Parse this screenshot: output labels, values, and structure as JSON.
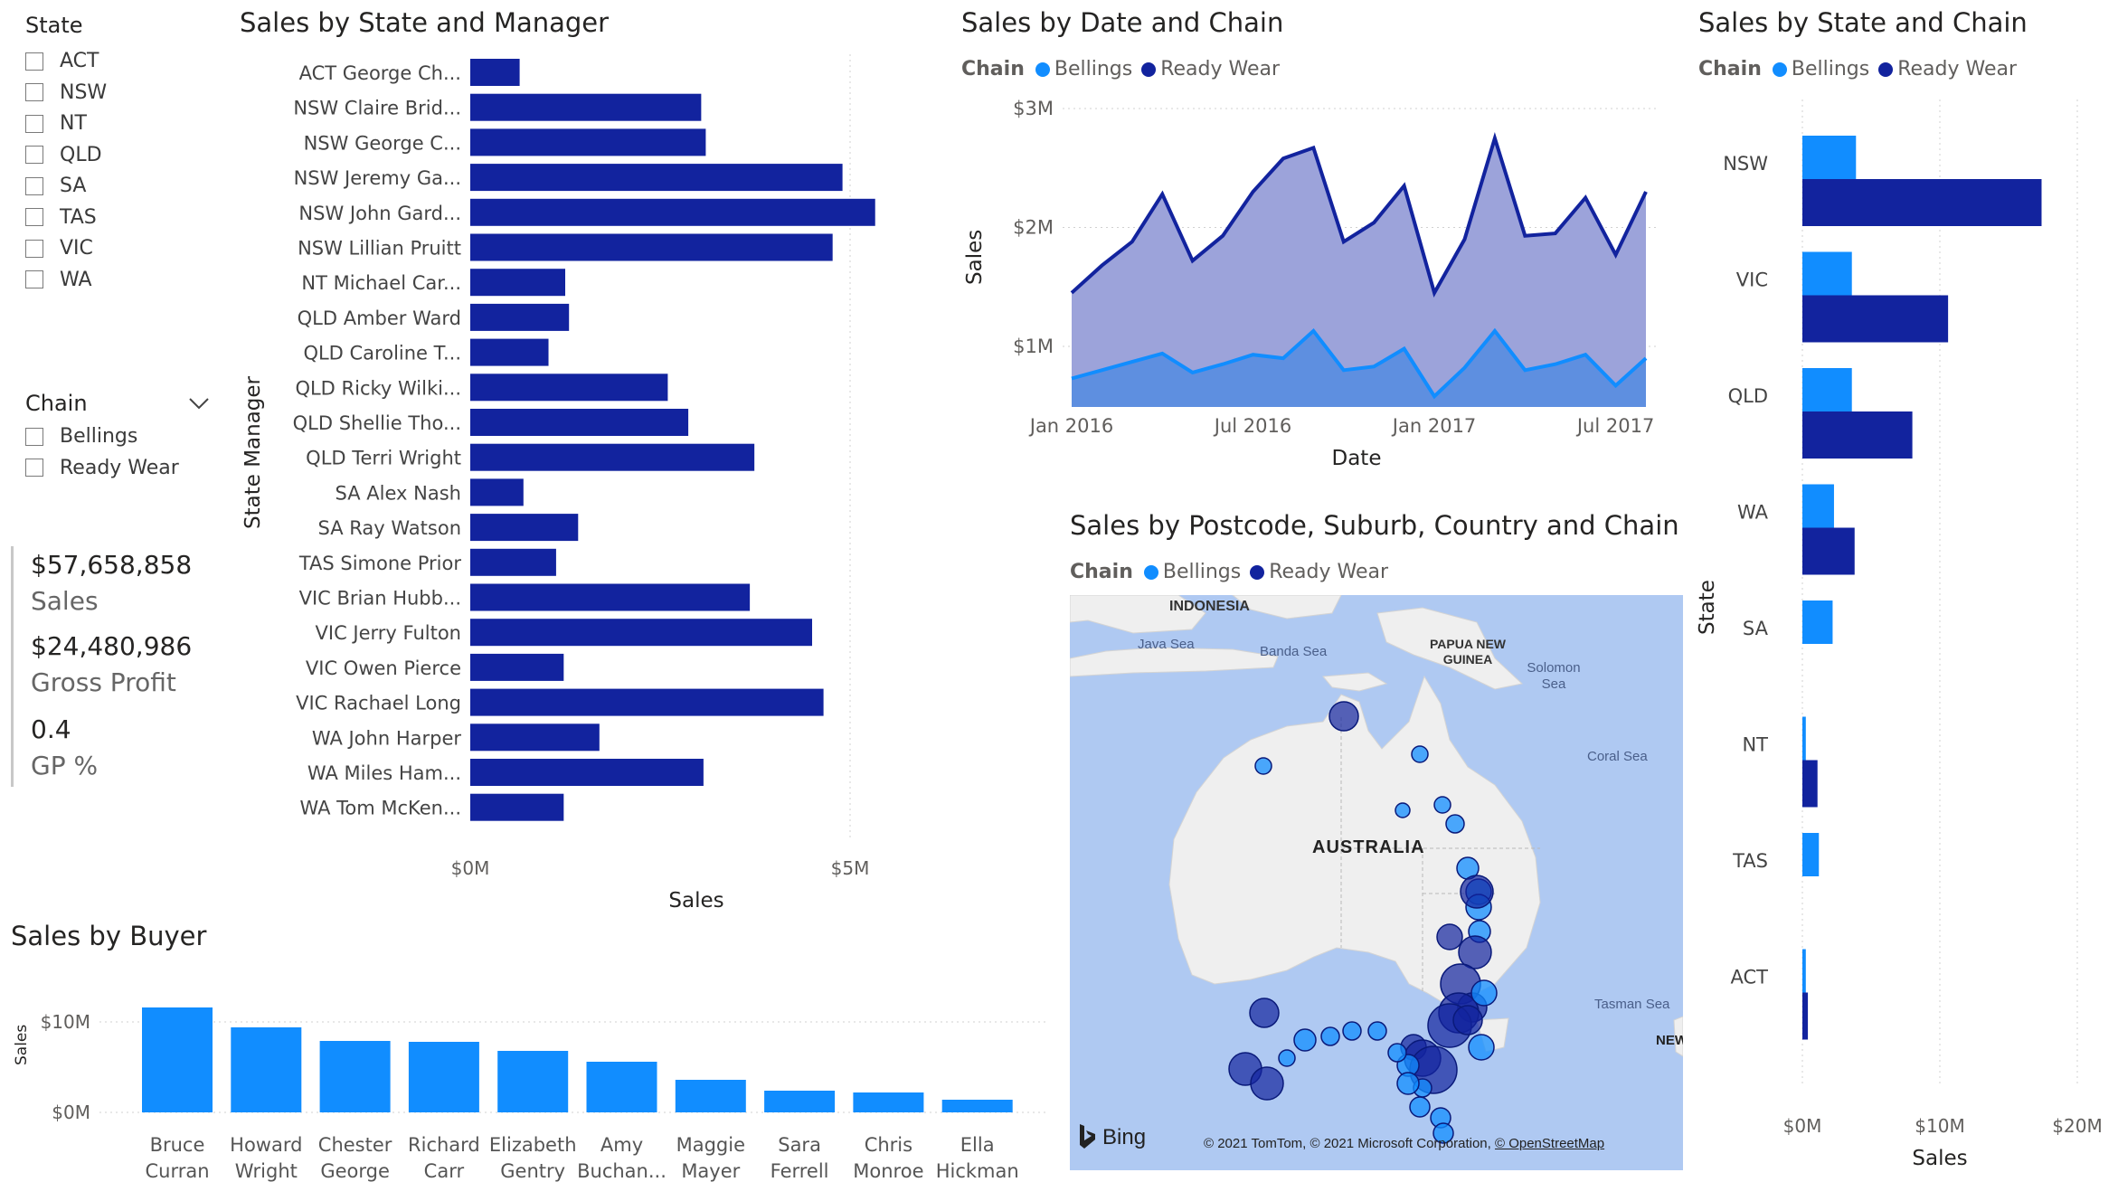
{
  "colors": {
    "bellings": "#118DFF",
    "ready_wear": "#12239E",
    "ready_wear_fill": "#9CA3DA",
    "bellings_fill": "#5E8FE0",
    "grid": "#d0d0d0",
    "map_water": "#AFC9F2",
    "map_land": "#EFEFEF"
  },
  "state_slicer": {
    "title": "State",
    "items": [
      "ACT",
      "NSW",
      "NT",
      "QLD",
      "SA",
      "TAS",
      "VIC",
      "WA"
    ]
  },
  "chain_slicer": {
    "title": "Chain",
    "items": [
      "Bellings",
      "Ready Wear"
    ]
  },
  "kpis": [
    {
      "value": "$57,658,858",
      "label": "Sales"
    },
    {
      "value": "$24,480,986",
      "label": "Gross Profit"
    },
    {
      "value": "0.4",
      "label": "GP %"
    }
  ],
  "legend": {
    "title": "Chain",
    "items": [
      "Bellings",
      "Ready Wear"
    ]
  },
  "charts": {
    "state_manager": {
      "title": "Sales by State and Manager",
      "xlabel": "Sales",
      "ylabel": "State Manager",
      "ticks": [
        "$0M",
        "$5M"
      ]
    },
    "date_chain": {
      "title": "Sales by Date and Chain",
      "xlabel": "Date",
      "ylabel": "Sales",
      "yticks": [
        "$3M",
        "$2M",
        "$1M"
      ],
      "xticks": [
        "Jan 2016",
        "Jul 2016",
        "Jan 2017",
        "Jul 2017"
      ]
    },
    "state_chain": {
      "title": "Sales by State and Chain",
      "xlabel": "Sales",
      "ylabel": "State",
      "ticks": [
        "$0M",
        "$10M",
        "$20M"
      ]
    },
    "buyer": {
      "title": "Sales by Buyer",
      "ylabel": "Sales",
      "yticks": [
        "$10M",
        "$0M"
      ]
    },
    "map": {
      "title": "Sales by Postcode, Suburb, Country and Chain",
      "labels": {
        "indonesia": "INDONESIA",
        "java_sea": "Java Sea",
        "banda_sea": "Banda Sea",
        "png": "PAPUA NEW GUINEA",
        "solomon": "Solomon Sea",
        "coral": "Coral Sea",
        "australia": "AUSTRALIA",
        "tasman": "Tasman Sea",
        "nz": "NEW"
      },
      "bing": "Bing",
      "copyright": "© 2021 TomTom, © 2021 Microsoft Corporation,",
      "osm": "© OpenStreetMap"
    }
  },
  "chart_data": [
    {
      "type": "bar",
      "orientation": "horizontal",
      "title": "Sales by State and Manager",
      "xlabel": "Sales",
      "ylabel": "State Manager",
      "xlim": [
        0,
        5.5
      ],
      "unit": "$M",
      "categories": [
        "ACT George Ch...",
        "NSW Claire Brid...",
        "NSW George C...",
        "NSW Jeremy Ga...",
        "NSW John Gard...",
        "NSW Lillian Pruitt",
        "NT Michael Car...",
        "QLD Amber Ward",
        "QLD Caroline T...",
        "QLD Ricky Wilki...",
        "QLD Shellie Tho...",
        "QLD Terri Wright",
        "SA Alex Nash",
        "SA Ray Watson",
        "TAS Simone Prior",
        "VIC Brian Hubb...",
        "VIC Jerry Fulton",
        "VIC Owen Pierce",
        "VIC Rachael Long",
        "WA John Harper",
        "WA Miles Ham...",
        "WA Tom McKen..."
      ],
      "values": [
        0.65,
        3.04,
        3.1,
        4.9,
        5.33,
        4.77,
        1.25,
        1.3,
        1.03,
        2.6,
        2.87,
        3.74,
        0.7,
        1.42,
        1.13,
        3.68,
        4.5,
        1.23,
        4.65,
        1.7,
        3.07,
        1.23
      ]
    },
    {
      "type": "area",
      "title": "Sales by Date and Chain",
      "xlabel": "Date",
      "ylabel": "Sales",
      "ylim": [
        0.5,
        3
      ],
      "unit": "$M",
      "x": [
        "2016-01",
        "2016-02",
        "2016-03",
        "2016-04",
        "2016-05",
        "2016-06",
        "2016-07",
        "2016-08",
        "2016-09",
        "2016-10",
        "2016-11",
        "2016-12",
        "2017-01",
        "2017-02",
        "2017-03",
        "2017-04",
        "2017-05",
        "2017-06",
        "2017-07",
        "2017-08"
      ],
      "series": [
        {
          "name": "Ready Wear",
          "values": [
            1.45,
            1.68,
            1.88,
            2.28,
            1.72,
            1.93,
            2.3,
            2.58,
            2.67,
            1.88,
            2.04,
            2.35,
            1.45,
            1.9,
            2.75,
            1.93,
            1.95,
            2.25,
            1.77,
            2.3
          ]
        },
        {
          "name": "Bellings",
          "values": [
            0.73,
            0.8,
            0.87,
            0.94,
            0.78,
            0.85,
            0.93,
            0.9,
            1.13,
            0.8,
            0.83,
            0.98,
            0.58,
            0.82,
            1.13,
            0.8,
            0.85,
            0.93,
            0.67,
            0.9
          ]
        }
      ]
    },
    {
      "type": "bar",
      "orientation": "horizontal",
      "title": "Sales by State and Chain",
      "xlabel": "Sales",
      "ylabel": "State",
      "xlim": [
        0,
        20
      ],
      "unit": "$M",
      "categories": [
        "NSW",
        "VIC",
        "QLD",
        "WA",
        "SA",
        "NT",
        "TAS",
        "ACT"
      ],
      "series": [
        {
          "name": "Bellings",
          "values": [
            3.9,
            3.6,
            3.6,
            2.3,
            2.2,
            0.25,
            1.2,
            0.25
          ]
        },
        {
          "name": "Ready Wear",
          "values": [
            17.4,
            10.6,
            8.0,
            3.8,
            0.0,
            1.1,
            0.0,
            0.4
          ]
        }
      ]
    },
    {
      "type": "bar",
      "title": "Sales by Buyer",
      "ylabel": "Sales",
      "ylim": [
        0,
        12
      ],
      "unit": "$M",
      "categories": [
        [
          "Bruce",
          "Curran"
        ],
        [
          "Howard",
          "Wright"
        ],
        [
          "Chester",
          "George"
        ],
        [
          "Richard",
          "Carr"
        ],
        [
          "Elizabeth",
          "Gentry"
        ],
        [
          "Amy",
          "Buchan..."
        ],
        [
          "Maggie",
          "Mayer"
        ],
        [
          "Sara",
          "Ferrell"
        ],
        [
          "Chris",
          "Monroe"
        ],
        [
          "Ella",
          "Hickman"
        ]
      ],
      "values": [
        11.6,
        9.4,
        7.9,
        7.8,
        6.8,
        5.6,
        3.6,
        2.4,
        2.2,
        1.4
      ]
    },
    {
      "type": "scatter",
      "title": "Sales by Postcode, Suburb, Country and Chain",
      "series": [
        {
          "name": "Bellings"
        },
        {
          "name": "Ready Wear"
        }
      ]
    }
  ]
}
